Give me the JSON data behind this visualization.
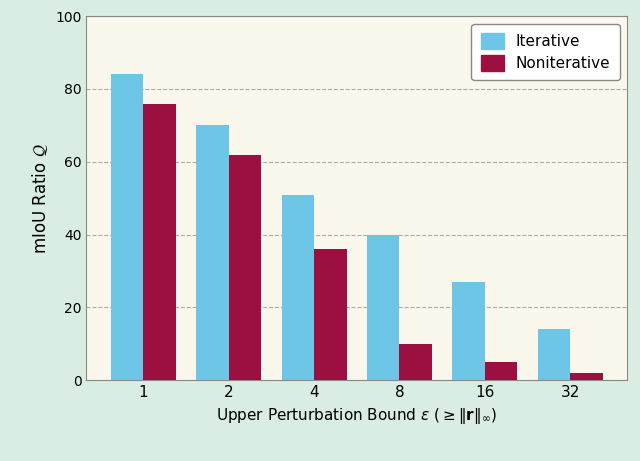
{
  "categories": [
    "1",
    "2",
    "4",
    "8",
    "16",
    "32"
  ],
  "iterative": [
    84,
    70,
    51,
    40,
    27,
    14
  ],
  "noniterative": [
    76,
    62,
    36,
    10,
    5,
    2
  ],
  "iterative_color": "#6EC6E6",
  "noniterative_color": "#9B1040",
  "ylabel": "mIoU Ratio $\\mathcal{Q}$",
  "xlabel": "Upper Perturbation Bound $\\epsilon$ ($\\geq$$\\|$$\\mathbf{r}$$\\|$$_\\infty$)",
  "ylim": [
    0,
    100
  ],
  "yticks": [
    0,
    20,
    40,
    60,
    80,
    100
  ],
  "plot_bg_color": "#FAF7EC",
  "outer_bg_color": "#D9EDE2",
  "caption_bg_color": "#D9EDE2",
  "legend_labels": [
    "Iterative",
    "Noniterative"
  ],
  "bar_width": 0.38
}
